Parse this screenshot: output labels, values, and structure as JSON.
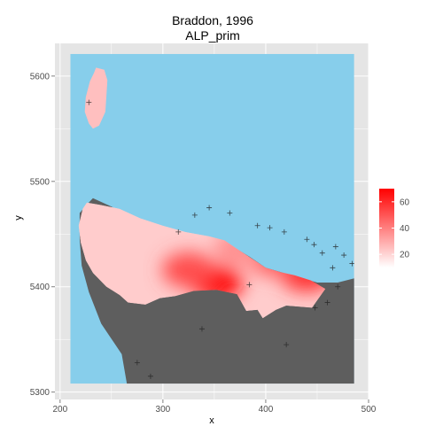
{
  "chart_data": {
    "type": "heatmap",
    "title": "Braddon, 1996",
    "subtitle": "ALP_prim",
    "xlabel": "x",
    "ylabel": "y",
    "xlim": [
      195,
      500
    ],
    "ylim": [
      5293,
      5631
    ],
    "x_ticks": [
      200,
      300,
      400,
      500
    ],
    "y_ticks": [
      5300,
      5400,
      5500,
      5600
    ],
    "x_tick_labels": [
      "200",
      "300",
      "400",
      "500"
    ],
    "y_tick_labels": [
      "5300",
      "5400",
      "5500",
      "5600"
    ],
    "grid": true,
    "legend_position": "right",
    "legend": {
      "min": 10,
      "max": 70,
      "ticks": [
        20,
        40,
        60
      ],
      "tick_labels": [
        "20",
        "40",
        "60"
      ],
      "low_color": "#ffffff",
      "high_color": "#ff0000"
    },
    "colors": {
      "panel_background": "#e5e5e5",
      "water": "#87ceeb",
      "land_no_data": "#5e5e5e",
      "grid_line": "#ffffff"
    },
    "raster_extent": {
      "x": [
        210,
        486
      ],
      "y": [
        5308,
        5621
      ]
    },
    "regions": {
      "island": [
        [
          235,
          5608
        ],
        [
          243,
          5606
        ],
        [
          246,
          5596
        ],
        [
          245,
          5580
        ],
        [
          244,
          5566
        ],
        [
          238,
          5553
        ],
        [
          232,
          5550
        ],
        [
          228,
          5555
        ],
        [
          224,
          5566
        ],
        [
          225,
          5580
        ],
        [
          229,
          5595
        ],
        [
          233,
          5603
        ]
      ],
      "mainland": [
        [
          219,
          5470
        ],
        [
          226,
          5478
        ],
        [
          232,
          5484
        ],
        [
          250,
          5476
        ],
        [
          268,
          5466
        ],
        [
          290,
          5455
        ],
        [
          318,
          5450
        ],
        [
          350,
          5446
        ],
        [
          370,
          5437
        ],
        [
          385,
          5428
        ],
        [
          400,
          5418
        ],
        [
          425,
          5411
        ],
        [
          450,
          5404
        ],
        [
          470,
          5404
        ],
        [
          486,
          5408
        ],
        [
          486,
          5308
        ],
        [
          265,
          5308
        ],
        [
          260,
          5336
        ],
        [
          240,
          5365
        ],
        [
          228,
          5395
        ],
        [
          221,
          5420
        ],
        [
          219,
          5445
        ]
      ],
      "data_region": [
        [
          218,
          5458
        ],
        [
          222,
          5474
        ],
        [
          226,
          5480
        ],
        [
          238,
          5478
        ],
        [
          258,
          5474
        ],
        [
          278,
          5465
        ],
        [
          300,
          5458
        ],
        [
          322,
          5452
        ],
        [
          345,
          5448
        ],
        [
          360,
          5444
        ],
        [
          372,
          5436
        ],
        [
          386,
          5427
        ],
        [
          400,
          5418
        ],
        [
          414,
          5414
        ],
        [
          428,
          5411
        ],
        [
          444,
          5406
        ],
        [
          458,
          5398
        ],
        [
          445,
          5380
        ],
        [
          420,
          5382
        ],
        [
          410,
          5378
        ],
        [
          397,
          5370
        ],
        [
          392,
          5378
        ],
        [
          381,
          5377
        ],
        [
          372,
          5393
        ],
        [
          352,
          5397
        ],
        [
          330,
          5396
        ],
        [
          312,
          5391
        ],
        [
          297,
          5389
        ],
        [
          283,
          5383
        ],
        [
          266,
          5385
        ],
        [
          258,
          5392
        ],
        [
          245,
          5400
        ],
        [
          232,
          5413
        ],
        [
          225,
          5425
        ],
        [
          220,
          5442
        ]
      ]
    },
    "hotspots": [
      {
        "x": 352,
        "y": 5404,
        "value": 68
      },
      {
        "x": 325,
        "y": 5416,
        "value": 52
      },
      {
        "x": 440,
        "y": 5412,
        "value": 58
      },
      {
        "x": 408,
        "y": 5427,
        "value": 48
      },
      {
        "x": 375,
        "y": 5437,
        "value": 36
      },
      {
        "x": 237,
        "y": 5580,
        "value": 25
      }
    ],
    "sample_points": [
      {
        "x": 345,
        "y": 5475
      },
      {
        "x": 365,
        "y": 5470
      },
      {
        "x": 392,
        "y": 5458
      },
      {
        "x": 404,
        "y": 5456
      },
      {
        "x": 418,
        "y": 5452
      },
      {
        "x": 440,
        "y": 5445
      },
      {
        "x": 447,
        "y": 5440
      },
      {
        "x": 455,
        "y": 5432
      },
      {
        "x": 468,
        "y": 5438
      },
      {
        "x": 476,
        "y": 5430
      },
      {
        "x": 484,
        "y": 5422
      },
      {
        "x": 384,
        "y": 5402
      },
      {
        "x": 465,
        "y": 5418
      },
      {
        "x": 448,
        "y": 5380
      },
      {
        "x": 460,
        "y": 5385
      },
      {
        "x": 470,
        "y": 5400
      },
      {
        "x": 338,
        "y": 5360
      },
      {
        "x": 420,
        "y": 5345
      },
      {
        "x": 490,
        "y": 5403
      },
      {
        "x": 331,
        "y": 5468
      },
      {
        "x": 228,
        "y": 5575
      },
      {
        "x": 315,
        "y": 5452
      },
      {
        "x": 275,
        "y": 5328
      },
      {
        "x": 288,
        "y": 5315
      }
    ]
  }
}
